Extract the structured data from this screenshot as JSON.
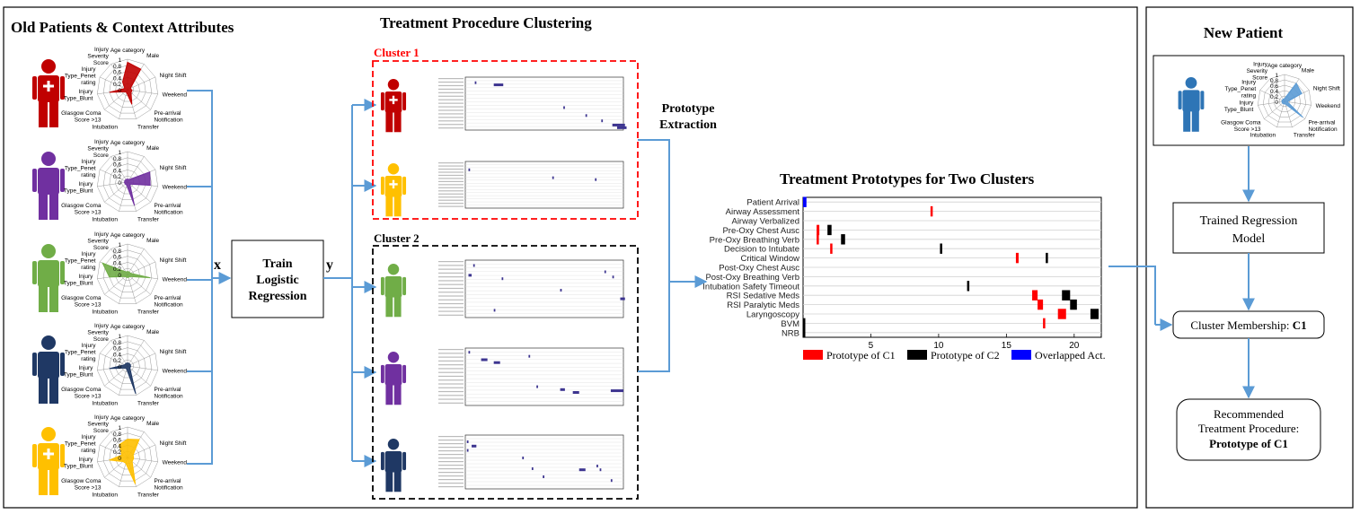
{
  "sections": {
    "old_patients": "Old Patients & Context Attributes",
    "clustering": "Treatment Procedure Clustering",
    "new_patient": "New Patient",
    "prototypes_title": "Treatment Prototypes for Two Clusters"
  },
  "radar_axes": [
    "Age category",
    "Male",
    "Night Shift",
    "Weekend",
    "Pre-arrival Notification",
    "Transfer",
    "Intubation",
    "Glasgow Coma Score >13",
    "Injury Type_Blunt",
    "Injury Type_Penet rating",
    "Injury Severity Score"
  ],
  "radar_ticks": [
    "1",
    "0.8",
    "0.6",
    "0.4",
    "0.2",
    "0"
  ],
  "patients": [
    {
      "color": "#c00000",
      "values": [
        0.9,
        0.8,
        0.1,
        0.15,
        0.15,
        0.5,
        0.1,
        0.1,
        0.6,
        0.1,
        0.3
      ]
    },
    {
      "color": "#7030a0",
      "values": [
        0.1,
        0.1,
        0.8,
        0.75,
        0.1,
        0.8,
        0.1,
        0.1,
        0.1,
        0.1,
        0.1
      ]
    },
    {
      "color": "#70ad47",
      "values": [
        0.1,
        0.1,
        0.1,
        0.75,
        0.1,
        0.1,
        0.1,
        0.1,
        0.6,
        0.9,
        0.1
      ]
    },
    {
      "color": "#1f3864",
      "values": [
        0.1,
        0.1,
        0.1,
        0.1,
        0.1,
        0.95,
        0.1,
        0.1,
        0.6,
        0.1,
        0.1
      ]
    },
    {
      "color": "#ffc000",
      "values": [
        0.6,
        0.7,
        0.2,
        0.2,
        0.2,
        0.9,
        0.2,
        0.2,
        0.6,
        0.2,
        0.5
      ]
    }
  ],
  "new_patient_radar": {
    "color": "#5b9bd5",
    "values": [
      0.1,
      0.8,
      0.7,
      0.1,
      0.9,
      0.1,
      0.1,
      0.1,
      0.1,
      0.1,
      0.1
    ]
  },
  "labels": {
    "x": "x",
    "y": "y",
    "prototype_extraction": "Prototype Extraction",
    "cluster1": "Cluster 1",
    "cluster2": "Cluster 2"
  },
  "train_box": "Train Logistic Regression",
  "trained_model": "Trained Regression Model",
  "membership": {
    "prefix": "Cluster Membership: ",
    "value": "C1"
  },
  "recommend": {
    "text": "Recommended Treatment Procedure:",
    "value": "Prototype of C1"
  },
  "colors": {
    "c1": "#ff0000",
    "c2": "#000000",
    "overlap": "#0000ff",
    "arrow": "#5b9bd5",
    "cluster1_border": "#ff0000",
    "cluster2_border": "#000000"
  },
  "chart_data": {
    "type": "scatter",
    "title": "Treatment Prototypes for Two Clusters",
    "activities": [
      "Patient Arrival",
      "Airway Assessment",
      "Airway Verbalized",
      "Pre-Oxy Chest Ausc",
      "Pre-Oxy Breathing Verb",
      "Decision to Intubate",
      "Critical Window",
      "Post-Oxy Chest Ausc",
      "Post-Oxy Breathing Verb",
      "Intubation Safety Timeout",
      "RSI Sedative Meds",
      "RSI Paralytic Meds",
      "Laryngoscopy",
      "BVM",
      "NRB"
    ],
    "xlim": [
      0,
      22
    ],
    "xticks": [
      "5",
      "10",
      "15",
      "20"
    ],
    "xtick_values": [
      5,
      10,
      15,
      20
    ],
    "legend": [
      "Prototype of C1",
      "Prototype of C2",
      "Overlapped Act."
    ],
    "series": [
      {
        "name": "Prototype of C1",
        "color": "#ff0000",
        "points": [
          {
            "activity": "Airway Assessment",
            "start": 9.4,
            "end": 9.5
          },
          {
            "activity": "Pre-Oxy Chest Ausc",
            "start": 1.0,
            "end": 1.2
          },
          {
            "activity": "Pre-Oxy Breathing Verb",
            "start": 1.0,
            "end": 1.1
          },
          {
            "activity": "Decision to Intubate",
            "start": 2.0,
            "end": 2.1
          },
          {
            "activity": "Critical Window",
            "start": 15.7,
            "end": 15.9
          },
          {
            "activity": "RSI Sedative Meds",
            "start": 16.9,
            "end": 17.3
          },
          {
            "activity": "RSI Paralytic Meds",
            "start": 17.3,
            "end": 17.7
          },
          {
            "activity": "Laryngoscopy",
            "start": 18.8,
            "end": 19.4
          },
          {
            "activity": "BVM",
            "start": 17.7,
            "end": 17.8
          }
        ]
      },
      {
        "name": "Prototype of C2",
        "color": "#000000",
        "points": [
          {
            "activity": "Pre-Oxy Chest Ausc",
            "start": 1.8,
            "end": 2.1
          },
          {
            "activity": "Pre-Oxy Breathing Verb",
            "start": 2.8,
            "end": 3.1
          },
          {
            "activity": "Decision to Intubate",
            "start": 10.1,
            "end": 10.2
          },
          {
            "activity": "Critical Window",
            "start": 17.9,
            "end": 18.0
          },
          {
            "activity": "Intubation Safety Timeout",
            "start": 12.1,
            "end": 12.2
          },
          {
            "activity": "RSI Sedative Meds",
            "start": 19.1,
            "end": 19.7
          },
          {
            "activity": "RSI Paralytic Meds",
            "start": 19.7,
            "end": 20.2
          },
          {
            "activity": "Laryngoscopy",
            "start": 21.2,
            "end": 21.8
          },
          {
            "activity": "BVM",
            "start": 0.0,
            "end": 0.15
          },
          {
            "activity": "NRB",
            "start": 0.0,
            "end": 0.15
          }
        ]
      },
      {
        "name": "Overlapped Act.",
        "color": "#0000ff",
        "points": [
          {
            "activity": "Patient Arrival",
            "start": 0.0,
            "end": 0.25
          }
        ]
      }
    ]
  }
}
